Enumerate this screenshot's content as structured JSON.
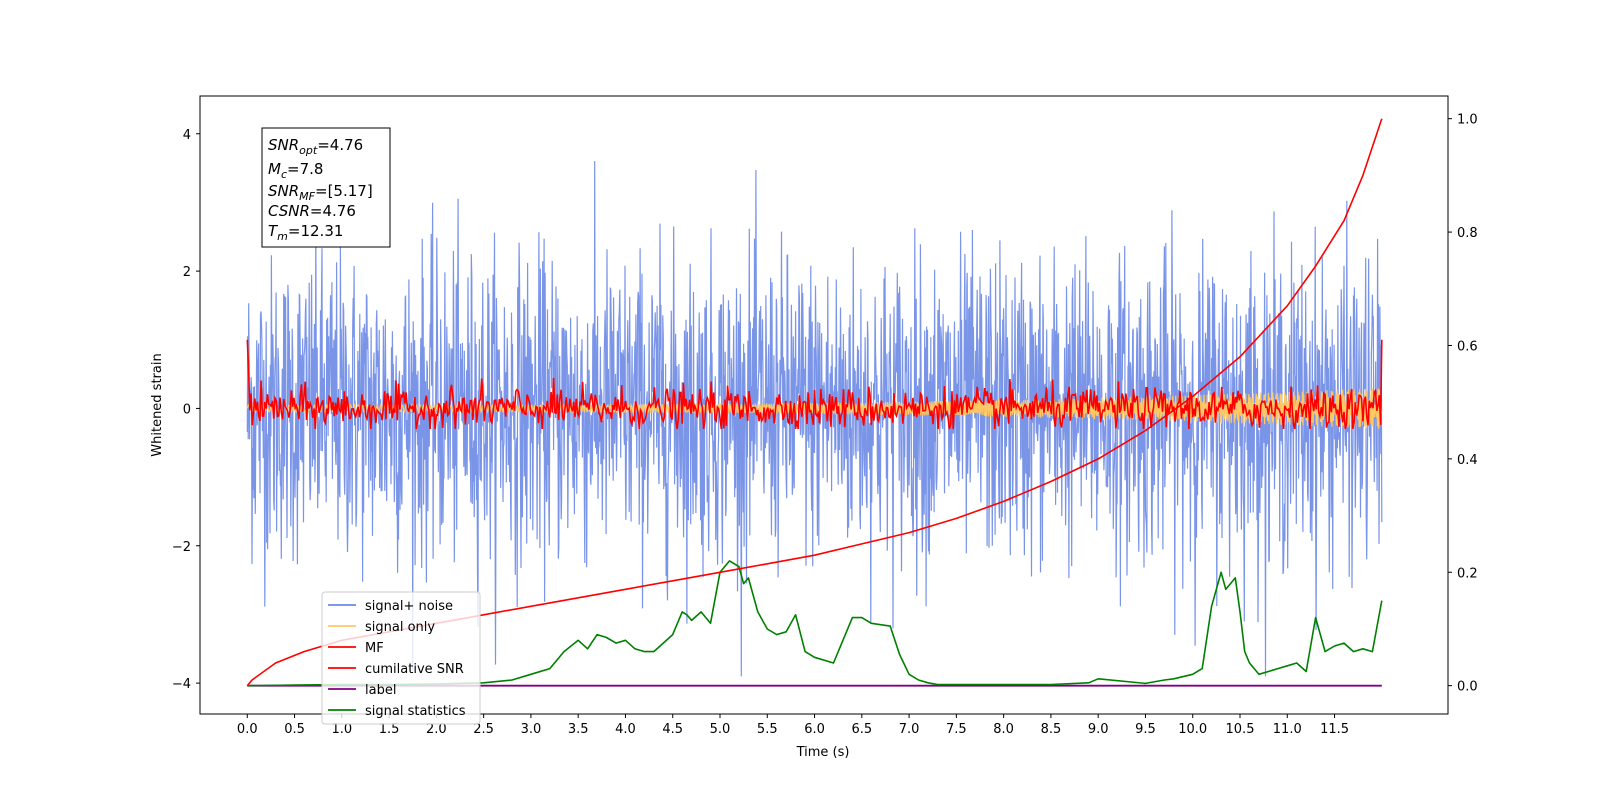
{
  "chart_data": {
    "type": "line",
    "xlabel": "Time (s)",
    "ylabel": "Whitened strain",
    "xlim": [
      -0.5,
      12.7
    ],
    "ylim_left": [
      -4.45,
      4.55
    ],
    "ylim_right": [
      -0.05,
      1.04
    ],
    "x_ticks": [
      "0.0",
      "0.5",
      "1.0",
      "1.5",
      "2.0",
      "2.5",
      "3.0",
      "3.5",
      "4.0",
      "4.5",
      "5.0",
      "5.5",
      "6.0",
      "6.5",
      "7.0",
      "7.5",
      "8.0",
      "8.5",
      "9.0",
      "9.5",
      "10.0",
      "10.5",
      "11.0",
      "11.5"
    ],
    "y_ticks_left": [
      "4",
      "2",
      "0",
      "−2",
      "−4"
    ],
    "y_ticks_right": [
      "1.0",
      "0.8",
      "0.6",
      "0.4",
      "0.2",
      "0.0"
    ],
    "annotation": {
      "snr_opt": {
        "symbol": "SNR",
        "sub": "opt",
        "value": "=4.76"
      },
      "m_c": {
        "symbol": "M",
        "sub": "c",
        "value": "=7.8"
      },
      "snr_mf": {
        "symbol": "SNR",
        "sub": "MF",
        "value": "=[5.17]"
      },
      "csnr": {
        "symbol": "CSNR",
        "sub": "",
        "value": "=4.76"
      },
      "t_m": {
        "symbol": "T",
        "sub": "m",
        "value": "=12.31"
      }
    },
    "legend": {
      "placement": "lower-left",
      "entries": [
        {
          "label": "signal+ noise",
          "color": "#6b8ae6"
        },
        {
          "label": "signal only",
          "color": "#ffc864"
        },
        {
          "label": "MF",
          "color": "#ff0000"
        },
        {
          "label": "cumilative SNR",
          "color": "#ff0000"
        },
        {
          "label": "label",
          "color": "#800080"
        },
        {
          "label": "signal statistics",
          "color": "#008000"
        }
      ]
    },
    "series": [
      {
        "name": "signal+ noise",
        "axis": "left",
        "color": "#6b8ae6",
        "style": "gaussian noise, std ~1.1",
        "x_range": [
          0,
          12.0
        ]
      },
      {
        "name": "signal only",
        "axis": "left",
        "color": "#ffc864",
        "style": "chirp, amplitude ~0.05 to 0.3",
        "x_range": [
          0,
          12.0
        ]
      },
      {
        "name": "MF",
        "axis": "left",
        "color": "#ff0000",
        "style": "noisy, std ~0.15, endpoints ~1.0",
        "x_range": [
          0,
          12.0
        ]
      },
      {
        "name": "cumilative SNR",
        "axis": "right",
        "color": "#ff0000",
        "x": [
          0,
          0.05,
          0.3,
          0.6,
          1.0,
          1.5,
          2.0,
          2.5,
          3.0,
          3.5,
          4.0,
          4.5,
          5.0,
          5.5,
          6.0,
          6.5,
          7.0,
          7.5,
          8.0,
          8.5,
          9.0,
          9.5,
          10.0,
          10.5,
          11.0,
          11.3,
          11.6,
          11.8,
          12.0
        ],
        "values": [
          0.0,
          0.01,
          0.04,
          0.06,
          0.08,
          0.095,
          0.11,
          0.125,
          0.14,
          0.155,
          0.17,
          0.185,
          0.2,
          0.215,
          0.23,
          0.25,
          0.27,
          0.295,
          0.325,
          0.36,
          0.4,
          0.45,
          0.51,
          0.58,
          0.67,
          0.74,
          0.82,
          0.9,
          1.0
        ]
      },
      {
        "name": "label",
        "axis": "right",
        "color": "#800080",
        "x": [
          0,
          12.0
        ],
        "values": [
          0.0,
          0.0
        ]
      },
      {
        "name": "signal statistics",
        "axis": "right",
        "color": "#008000",
        "x": [
          0,
          0.5,
          1.0,
          1.5,
          2.0,
          2.5,
          2.8,
          3.0,
          3.2,
          3.35,
          3.5,
          3.6,
          3.7,
          3.8,
          3.9,
          4.0,
          4.1,
          4.2,
          4.3,
          4.4,
          4.5,
          4.6,
          4.65,
          4.7,
          4.8,
          4.9,
          5.0,
          5.1,
          5.2,
          5.25,
          5.3,
          5.4,
          5.5,
          5.6,
          5.7,
          5.8,
          5.9,
          6.0,
          6.2,
          6.4,
          6.5,
          6.6,
          6.8,
          6.9,
          7.0,
          7.1,
          7.2,
          7.3,
          7.5,
          8.0,
          8.5,
          8.9,
          9.0,
          9.5,
          9.7,
          9.8,
          10.0,
          10.1,
          10.2,
          10.3,
          10.35,
          10.45,
          10.5,
          10.55,
          10.6,
          10.7,
          10.8,
          10.9,
          11.0,
          11.1,
          11.2,
          11.3,
          11.4,
          11.5,
          11.6,
          11.7,
          11.8,
          11.9,
          12.0
        ],
        "values": [
          0.0,
          0.001,
          0.002,
          0.002,
          0.003,
          0.005,
          0.01,
          0.02,
          0.03,
          0.06,
          0.08,
          0.065,
          0.09,
          0.085,
          0.075,
          0.08,
          0.065,
          0.06,
          0.06,
          0.075,
          0.09,
          0.13,
          0.125,
          0.115,
          0.13,
          0.11,
          0.2,
          0.22,
          0.21,
          0.18,
          0.19,
          0.13,
          0.1,
          0.09,
          0.095,
          0.125,
          0.06,
          0.05,
          0.04,
          0.12,
          0.12,
          0.11,
          0.105,
          0.055,
          0.02,
          0.01,
          0.005,
          0.002,
          0.002,
          0.002,
          0.002,
          0.005,
          0.012,
          0.004,
          0.01,
          0.012,
          0.02,
          0.03,
          0.14,
          0.2,
          0.17,
          0.19,
          0.13,
          0.06,
          0.04,
          0.02,
          0.025,
          0.03,
          0.035,
          0.04,
          0.025,
          0.12,
          0.06,
          0.07,
          0.075,
          0.06,
          0.065,
          0.06,
          0.15
        ]
      }
    ]
  }
}
